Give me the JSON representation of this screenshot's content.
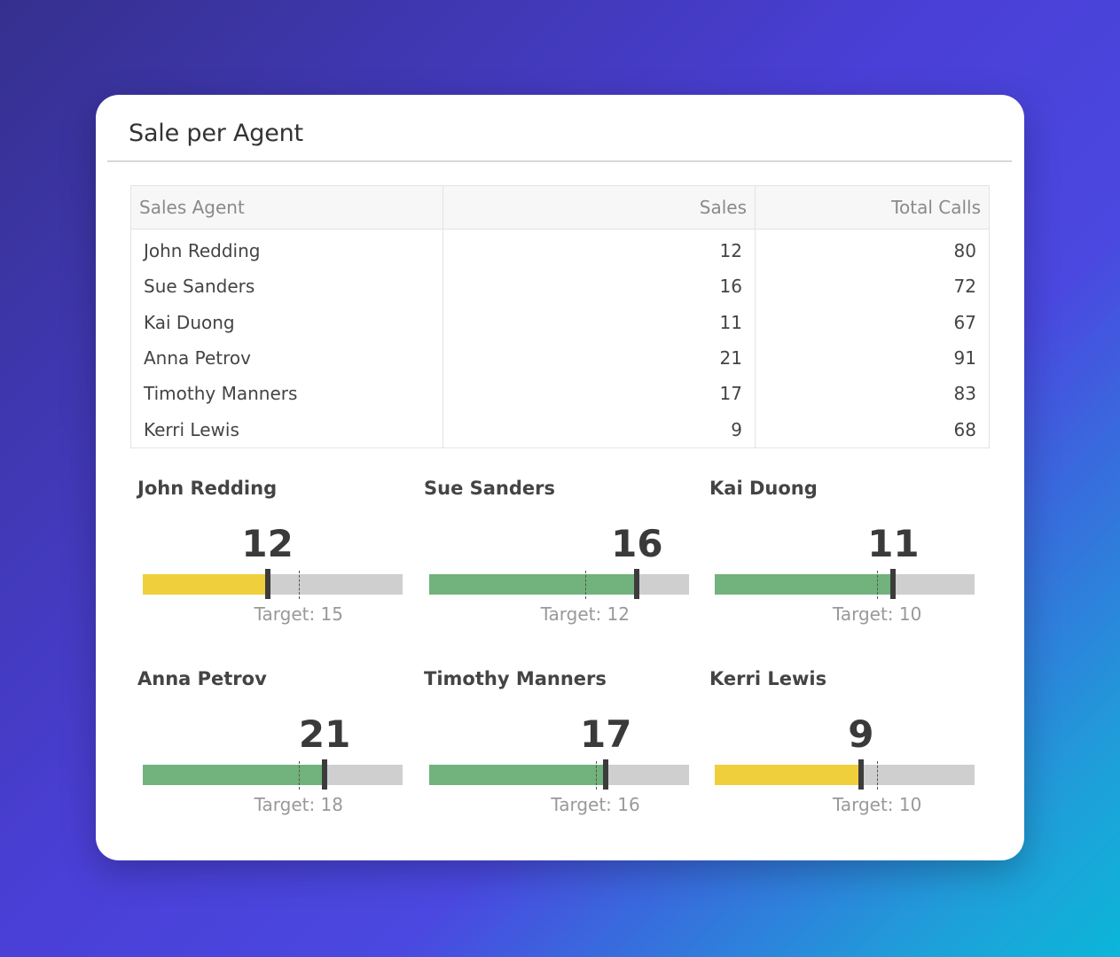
{
  "card": {
    "title": "Sale per Agent"
  },
  "table": {
    "headers": [
      "Sales Agent",
      "Sales",
      "Total Calls"
    ],
    "rows": [
      [
        "John Redding",
        "12",
        "80"
      ],
      [
        "Sue Sanders",
        "16",
        "72"
      ],
      [
        "Kai Duong",
        "11",
        "67"
      ],
      [
        "Anna Petrov",
        "21",
        "91"
      ],
      [
        "Timothy Manners",
        "17",
        "83"
      ],
      [
        "Kerri Lewis",
        "9",
        "68"
      ]
    ]
  },
  "colors": {
    "below_target": "#efcf3c",
    "above_target": "#72b27c",
    "track": "#cfcfcf"
  },
  "gauges": [
    {
      "name": "John Redding",
      "value": 12,
      "value_text": "12",
      "target": 15,
      "target_text": "Target: 15",
      "max": 25,
      "status": "below_target"
    },
    {
      "name": "Sue Sanders",
      "value": 16,
      "value_text": "16",
      "target": 12,
      "target_text": "Target: 12",
      "max": 20,
      "status": "above_target"
    },
    {
      "name": "Kai Duong",
      "value": 11,
      "value_text": "11",
      "target": 10,
      "target_text": "Target: 10",
      "max": 16,
      "status": "above_target"
    },
    {
      "name": "Anna Petrov",
      "value": 21,
      "value_text": "21",
      "target": 18,
      "target_text": "Target: 18",
      "max": 30,
      "status": "above_target"
    },
    {
      "name": "Timothy Manners",
      "value": 17,
      "value_text": "17",
      "target": 16,
      "target_text": "Target: 16",
      "max": 25,
      "status": "above_target"
    },
    {
      "name": "Kerri Lewis",
      "value": 9,
      "value_text": "9",
      "target": 10,
      "target_text": "Target: 10",
      "max": 16,
      "status": "below_target"
    }
  ]
}
